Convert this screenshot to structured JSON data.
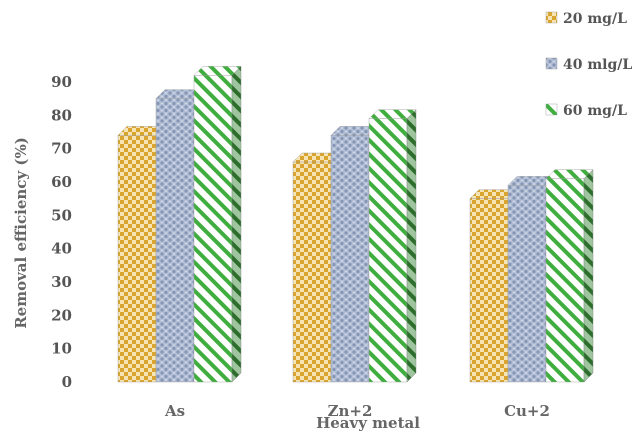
{
  "chart_data": {
    "type": "bar",
    "title": "",
    "xlabel": "Heavy metal",
    "ylabel": "Removal efficiency (%)",
    "ylim": [
      0,
      90
    ],
    "yticks": [
      0,
      10,
      20,
      30,
      40,
      50,
      60,
      70,
      80,
      90
    ],
    "categories": [
      "As",
      "Zn+2",
      "Cu+2"
    ],
    "series": [
      {
        "name": "20 mg/L",
        "values": [
          74,
          66,
          55
        ]
      },
      {
        "name": "40 mlg/L",
        "values": [
          85,
          74,
          59
        ]
      },
      {
        "name": "60 mg/L",
        "values": [
          92,
          79,
          61
        ]
      }
    ],
    "grid": false,
    "legend": "top-right",
    "style": "3d-patterned",
    "colors": {
      "20 mg/L": "#e3b33b",
      "40 mlg/L": "#a6b4cf",
      "60 mg/L": "#3fae3f"
    }
  }
}
